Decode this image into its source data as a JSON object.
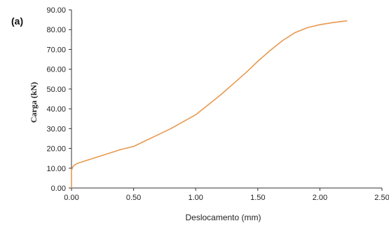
{
  "panel_label": "(a)",
  "chart_data": {
    "type": "line",
    "title": "",
    "xlabel": "Deslocamento (mm)",
    "ylabel": "Carga  (kN)",
    "xlim": [
      0,
      2.5
    ],
    "ylim": [
      0,
      90
    ],
    "x_ticks": [
      "0.00",
      "0.50",
      "1.00",
      "1.50",
      "2.00",
      "2.50"
    ],
    "y_ticks": [
      "0.00",
      "10.00",
      "20.00",
      "30.00",
      "40.00",
      "50.00",
      "60.00",
      "70.00",
      "80.00",
      "90.00"
    ],
    "grid": false,
    "line_color": "#e8994f",
    "series": [
      {
        "x": [
          0.0,
          0.0,
          0.0,
          0.01,
          0.02,
          0.05,
          0.1,
          0.2,
          0.3,
          0.4,
          0.5,
          0.6,
          0.7,
          0.8,
          0.9,
          1.0,
          1.1,
          1.2,
          1.3,
          1.4,
          1.5,
          1.6,
          1.7,
          1.8,
          1.9,
          2.0,
          2.1,
          2.2,
          2.22
        ],
        "y": [
          0.0,
          5.0,
          9.0,
          10.5,
          11.5,
          12.5,
          13.5,
          15.5,
          17.5,
          19.5,
          21.0,
          24.0,
          27.0,
          30.0,
          33.5,
          37.0,
          42.0,
          47.0,
          52.5,
          58.0,
          64.0,
          69.5,
          74.5,
          78.5,
          81.0,
          82.5,
          83.5,
          84.3,
          84.5
        ]
      }
    ]
  }
}
